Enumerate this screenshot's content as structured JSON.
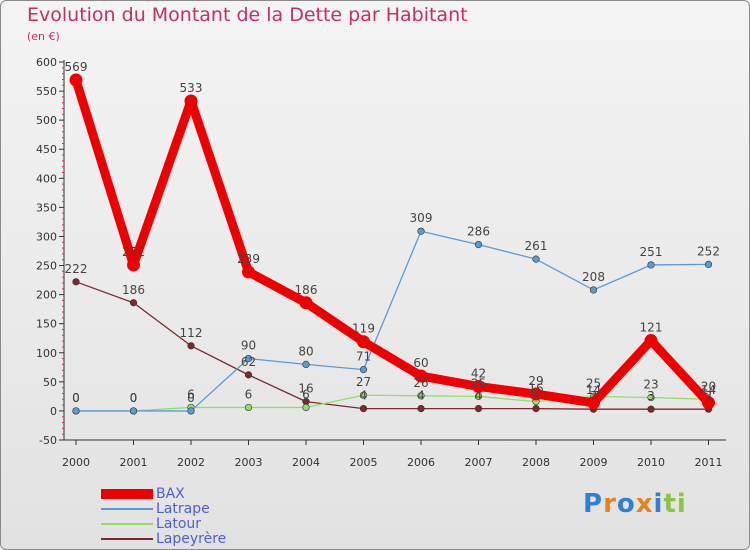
{
  "chart_data": {
    "type": "line",
    "title": "Evolution du Montant de la Dette par Habitant",
    "subtitle": "(en €)",
    "x": [
      "2000",
      "2001",
      "2002",
      "2003",
      "2004",
      "2005",
      "2006",
      "2007",
      "2008",
      "2009",
      "2010",
      "2011"
    ],
    "ylim": [
      -50,
      600
    ],
    "yticks": [
      -50,
      0,
      50,
      100,
      150,
      200,
      250,
      300,
      350,
      400,
      450,
      500,
      550,
      600
    ],
    "grid": false,
    "legend_position": "bottom-left",
    "series": [
      {
        "name": "BAX",
        "color": "#ee0000",
        "values": [
          569,
          251,
          533,
          239,
          186,
          119,
          60,
          42,
          29,
          14,
          121,
          14
        ],
        "labels": [
          "569",
          "251",
          "533",
          "239",
          "186",
          "119",
          "60",
          "42",
          "29",
          "14",
          "121",
          "14"
        ]
      },
      {
        "name": "Latrape",
        "color": "#5b9bd5",
        "values": [
          0,
          0,
          0,
          90,
          80,
          71,
          309,
          286,
          261,
          208,
          251,
          252
        ],
        "labels": [
          "0",
          "0",
          "0",
          "90",
          "80",
          "71",
          "309",
          "286",
          "261",
          "208",
          "251",
          "252"
        ]
      },
      {
        "name": "Latour",
        "color": "#8fe06a",
        "values": [
          0,
          0,
          6,
          6,
          6,
          27,
          26,
          25,
          16,
          25,
          23,
          20
        ],
        "labels": [
          "0",
          "0",
          "6",
          "6",
          "6",
          "27",
          "26",
          "25",
          "16",
          "25",
          "23",
          "20"
        ]
      },
      {
        "name": "Lapeyrère",
        "color": "#7a2a2a",
        "values": [
          222,
          186,
          112,
          62,
          16,
          4,
          4,
          4,
          4,
          3,
          3,
          3
        ],
        "labels": [
          "222",
          "186",
          "112",
          "62",
          "16",
          "4",
          "4",
          "4",
          "4",
          "3",
          "3",
          "3"
        ]
      }
    ]
  },
  "logo": {
    "letters": [
      {
        "ch": "P",
        "color": "#2f7fd3"
      },
      {
        "ch": "r",
        "color": "#e8821a"
      },
      {
        "ch": "o",
        "color": "#2f7fd3"
      },
      {
        "ch": "x",
        "color": "#e8821a"
      },
      {
        "ch": "i",
        "color": "#2f7fd3"
      },
      {
        "ch": "t",
        "color": "#8cc63f"
      },
      {
        "ch": "i",
        "color": "#8cc63f"
      }
    ]
  }
}
